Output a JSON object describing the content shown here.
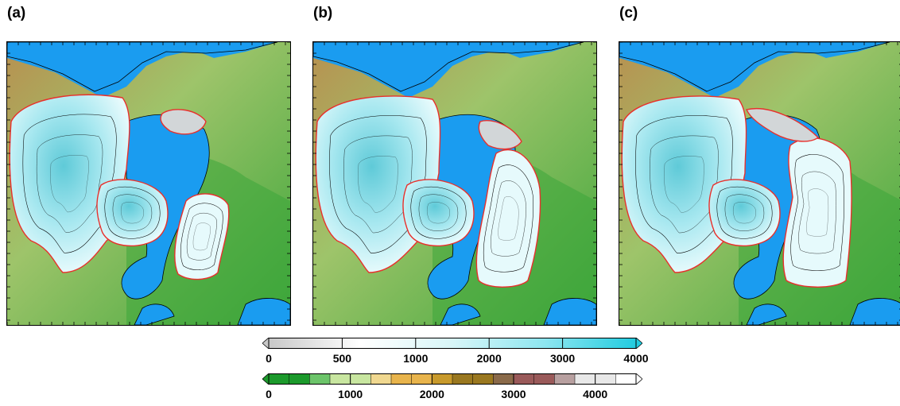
{
  "panels": [
    {
      "label": "(a)",
      "variant": "a"
    },
    {
      "label": "(b)",
      "variant": "b"
    },
    {
      "label": "(c)",
      "variant": "c"
    }
  ],
  "colorbars": {
    "ice_thickness": {
      "ticks": [
        "0",
        "500",
        "1000",
        "2000",
        "3000",
        "4000"
      ],
      "tick_values": [
        0,
        500,
        1000,
        2000,
        3000,
        4000
      ],
      "colors": [
        "#c8c8c8",
        "#ffffff",
        "#d8f6f8",
        "#8ee6f0",
        "#22cce0"
      ]
    },
    "topography": {
      "ticks": [
        "0",
        "1000",
        "2000",
        "3000",
        "4000"
      ],
      "tick_values": [
        0,
        1000,
        2000,
        3000,
        4000
      ],
      "min": 0,
      "max": 4500,
      "colors": [
        "#1c9a2c",
        "#6cc46a",
        "#c8e6a0",
        "#f0d890",
        "#e8b44c",
        "#c89a2c",
        "#9a7820",
        "#8a6a4a",
        "#9a5a5a",
        "#b8a0a0",
        "#e8e8e8",
        "#ffffff"
      ]
    }
  },
  "colors": {
    "ocean": "#1a9cf0",
    "land_low": "#3ca63a",
    "land_mid": "#9ec46a",
    "land_high": "#b89050",
    "ice_edge": "#e8302c",
    "ice_fill": "#e6fafc",
    "ice_core": "#5fcad8",
    "contour": "#000000"
  }
}
